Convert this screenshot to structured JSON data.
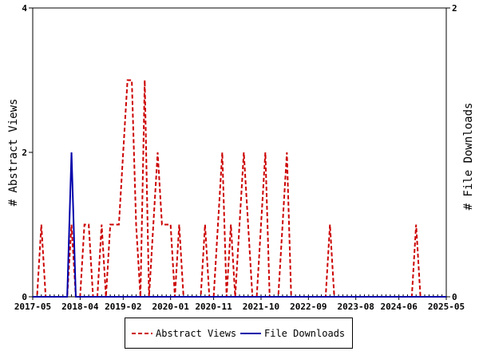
{
  "chart_data": {
    "type": "line",
    "xlabel": "",
    "ylabel_left": "# Abstract Views",
    "ylabel_right": "# File Downloads",
    "y_left_range": [
      0,
      4
    ],
    "y_left_ticks": [
      0,
      2,
      4
    ],
    "y_right_range": [
      0,
      2
    ],
    "y_right_ticks": [
      0,
      2
    ],
    "x_tick_labels": [
      "2017-05",
      "2018-04",
      "2019-02",
      "2020-01",
      "2020-11",
      "2021-10",
      "2022-09",
      "2023-08",
      "2024-06",
      "2025-05"
    ],
    "x_range": [
      "2017-05",
      "2025-05"
    ],
    "grid": false,
    "legend_placement": "bottom",
    "series": [
      {
        "name": "Abstract Views",
        "axis": "left",
        "color": "#cc0000",
        "style": "dashed",
        "points": [
          [
            "2017-05",
            0
          ],
          [
            "2017-06",
            0
          ],
          [
            "2017-07",
            1
          ],
          [
            "2017-08",
            0
          ],
          [
            "2017-09",
            0
          ],
          [
            "2017-10",
            0
          ],
          [
            "2017-11",
            0
          ],
          [
            "2017-12",
            0
          ],
          [
            "2018-01",
            0
          ],
          [
            "2018-02",
            1
          ],
          [
            "2018-03",
            0
          ],
          [
            "2018-04",
            0
          ],
          [
            "2018-05",
            1
          ],
          [
            "2018-06",
            1
          ],
          [
            "2018-07",
            0
          ],
          [
            "2018-08",
            0
          ],
          [
            "2018-09",
            1
          ],
          [
            "2018-10",
            0
          ],
          [
            "2018-11",
            1
          ],
          [
            "2018-12",
            1
          ],
          [
            "2019-01",
            1
          ],
          [
            "2019-02",
            2
          ],
          [
            "2019-03",
            3
          ],
          [
            "2019-04",
            3
          ],
          [
            "2019-05",
            1
          ],
          [
            "2019-06",
            0
          ],
          [
            "2019-07",
            3
          ],
          [
            "2019-08",
            0
          ],
          [
            "2019-09",
            1
          ],
          [
            "2019-10",
            2
          ],
          [
            "2019-11",
            1
          ],
          [
            "2019-12",
            1
          ],
          [
            "2020-01",
            1
          ],
          [
            "2020-02",
            0
          ],
          [
            "2020-03",
            1
          ],
          [
            "2020-04",
            0
          ],
          [
            "2020-05",
            0
          ],
          [
            "2020-06",
            0
          ],
          [
            "2020-07",
            0
          ],
          [
            "2020-08",
            0
          ],
          [
            "2020-09",
            1
          ],
          [
            "2020-10",
            0
          ],
          [
            "2020-11",
            0
          ],
          [
            "2020-12",
            1
          ],
          [
            "2021-01",
            2
          ],
          [
            "2021-02",
            0
          ],
          [
            "2021-03",
            1
          ],
          [
            "2021-04",
            0
          ],
          [
            "2021-05",
            1
          ],
          [
            "2021-06",
            2
          ],
          [
            "2021-07",
            1
          ],
          [
            "2021-08",
            0
          ],
          [
            "2021-09",
            0
          ],
          [
            "2021-10",
            1
          ],
          [
            "2021-11",
            2
          ],
          [
            "2021-12",
            0
          ],
          [
            "2022-01",
            0
          ],
          [
            "2022-02",
            0
          ],
          [
            "2022-03",
            1
          ],
          [
            "2022-04",
            2
          ],
          [
            "2022-05",
            0
          ],
          [
            "2022-06",
            0
          ],
          [
            "2022-07",
            0
          ],
          [
            "2022-08",
            0
          ],
          [
            "2022-09",
            0
          ],
          [
            "2022-10",
            0
          ],
          [
            "2022-11",
            0
          ],
          [
            "2022-12",
            0
          ],
          [
            "2023-01",
            0
          ],
          [
            "2023-02",
            1
          ],
          [
            "2023-03",
            0
          ],
          [
            "2023-04",
            0
          ],
          [
            "2023-05",
            0
          ],
          [
            "2023-06",
            0
          ],
          [
            "2023-07",
            0
          ],
          [
            "2023-08",
            0
          ],
          [
            "2023-09",
            0
          ],
          [
            "2023-10",
            0
          ],
          [
            "2023-11",
            0
          ],
          [
            "2023-12",
            0
          ],
          [
            "2024-01",
            0
          ],
          [
            "2024-02",
            0
          ],
          [
            "2024-03",
            0
          ],
          [
            "2024-04",
            0
          ],
          [
            "2024-05",
            0
          ],
          [
            "2024-06",
            0
          ],
          [
            "2024-07",
            0
          ],
          [
            "2024-08",
            0
          ],
          [
            "2024-09",
            0
          ],
          [
            "2024-10",
            1
          ],
          [
            "2024-11",
            0
          ],
          [
            "2024-12",
            0
          ],
          [
            "2025-01",
            0
          ],
          [
            "2025-02",
            0
          ],
          [
            "2025-03",
            0
          ],
          [
            "2025-04",
            0
          ],
          [
            "2025-05",
            0
          ]
        ]
      },
      {
        "name": "File Downloads",
        "axis": "right",
        "color": "#0000aa",
        "style": "solid",
        "points": [
          [
            "2017-05",
            0
          ],
          [
            "2017-06",
            0
          ],
          [
            "2017-07",
            0
          ],
          [
            "2017-08",
            0
          ],
          [
            "2017-09",
            0
          ],
          [
            "2017-10",
            0
          ],
          [
            "2017-11",
            0
          ],
          [
            "2017-12",
            0
          ],
          [
            "2018-01",
            0
          ],
          [
            "2018-02",
            1
          ],
          [
            "2018-03",
            0
          ],
          [
            "2018-04",
            0
          ],
          [
            "2018-05",
            0
          ],
          [
            "2018-06",
            0
          ],
          [
            "2018-07",
            0
          ],
          [
            "2018-08",
            0
          ],
          [
            "2018-09",
            0
          ],
          [
            "2018-10",
            0
          ],
          [
            "2018-11",
            0
          ],
          [
            "2018-12",
            0
          ],
          [
            "2019-01",
            0
          ],
          [
            "2019-02",
            0
          ],
          [
            "2019-03",
            0
          ],
          [
            "2019-04",
            0
          ],
          [
            "2019-05",
            0
          ],
          [
            "2019-06",
            0
          ],
          [
            "2019-07",
            0
          ],
          [
            "2019-08",
            0
          ],
          [
            "2019-09",
            0
          ],
          [
            "2019-10",
            0
          ],
          [
            "2019-11",
            0
          ],
          [
            "2019-12",
            0
          ],
          [
            "2020-01",
            0
          ],
          [
            "2020-02",
            0
          ],
          [
            "2020-03",
            0
          ],
          [
            "2020-04",
            0
          ],
          [
            "2020-05",
            0
          ],
          [
            "2020-06",
            0
          ],
          [
            "2020-07",
            0
          ],
          [
            "2020-08",
            0
          ],
          [
            "2020-09",
            0
          ],
          [
            "2020-10",
            0
          ],
          [
            "2020-11",
            0
          ],
          [
            "2020-12",
            0
          ],
          [
            "2021-01",
            0
          ],
          [
            "2021-02",
            0
          ],
          [
            "2021-03",
            0
          ],
          [
            "2021-04",
            0
          ],
          [
            "2021-05",
            0
          ],
          [
            "2021-06",
            0
          ],
          [
            "2021-07",
            0
          ],
          [
            "2021-08",
            0
          ],
          [
            "2021-09",
            0
          ],
          [
            "2021-10",
            0
          ],
          [
            "2021-11",
            0
          ],
          [
            "2021-12",
            0
          ],
          [
            "2022-01",
            0
          ],
          [
            "2022-02",
            0
          ],
          [
            "2022-03",
            0
          ],
          [
            "2022-04",
            0
          ],
          [
            "2022-05",
            0
          ],
          [
            "2022-06",
            0
          ],
          [
            "2022-07",
            0
          ],
          [
            "2022-08",
            0
          ],
          [
            "2022-09",
            0
          ],
          [
            "2022-10",
            0
          ],
          [
            "2022-11",
            0
          ],
          [
            "2022-12",
            0
          ],
          [
            "2023-01",
            0
          ],
          [
            "2023-02",
            0
          ],
          [
            "2023-03",
            0
          ],
          [
            "2023-04",
            0
          ],
          [
            "2023-05",
            0
          ],
          [
            "2023-06",
            0
          ],
          [
            "2023-07",
            0
          ],
          [
            "2023-08",
            0
          ],
          [
            "2023-09",
            0
          ],
          [
            "2023-10",
            0
          ],
          [
            "2023-11",
            0
          ],
          [
            "2023-12",
            0
          ],
          [
            "2024-01",
            0
          ],
          [
            "2024-02",
            0
          ],
          [
            "2024-03",
            0
          ],
          [
            "2024-04",
            0
          ],
          [
            "2024-05",
            0
          ],
          [
            "2024-06",
            0
          ],
          [
            "2024-07",
            0
          ],
          [
            "2024-08",
            0
          ],
          [
            "2024-09",
            0
          ],
          [
            "2024-10",
            0
          ],
          [
            "2024-11",
            0
          ],
          [
            "2024-12",
            0
          ],
          [
            "2025-01",
            0
          ],
          [
            "2025-02",
            0
          ],
          [
            "2025-03",
            0
          ],
          [
            "2025-04",
            0
          ],
          [
            "2025-05",
            0
          ]
        ]
      }
    ]
  },
  "legend": {
    "items": [
      {
        "label": "Abstract Views",
        "color": "#cc0000",
        "style": "dashed"
      },
      {
        "label": "File Downloads",
        "color": "#0000aa",
        "style": "solid"
      }
    ]
  }
}
